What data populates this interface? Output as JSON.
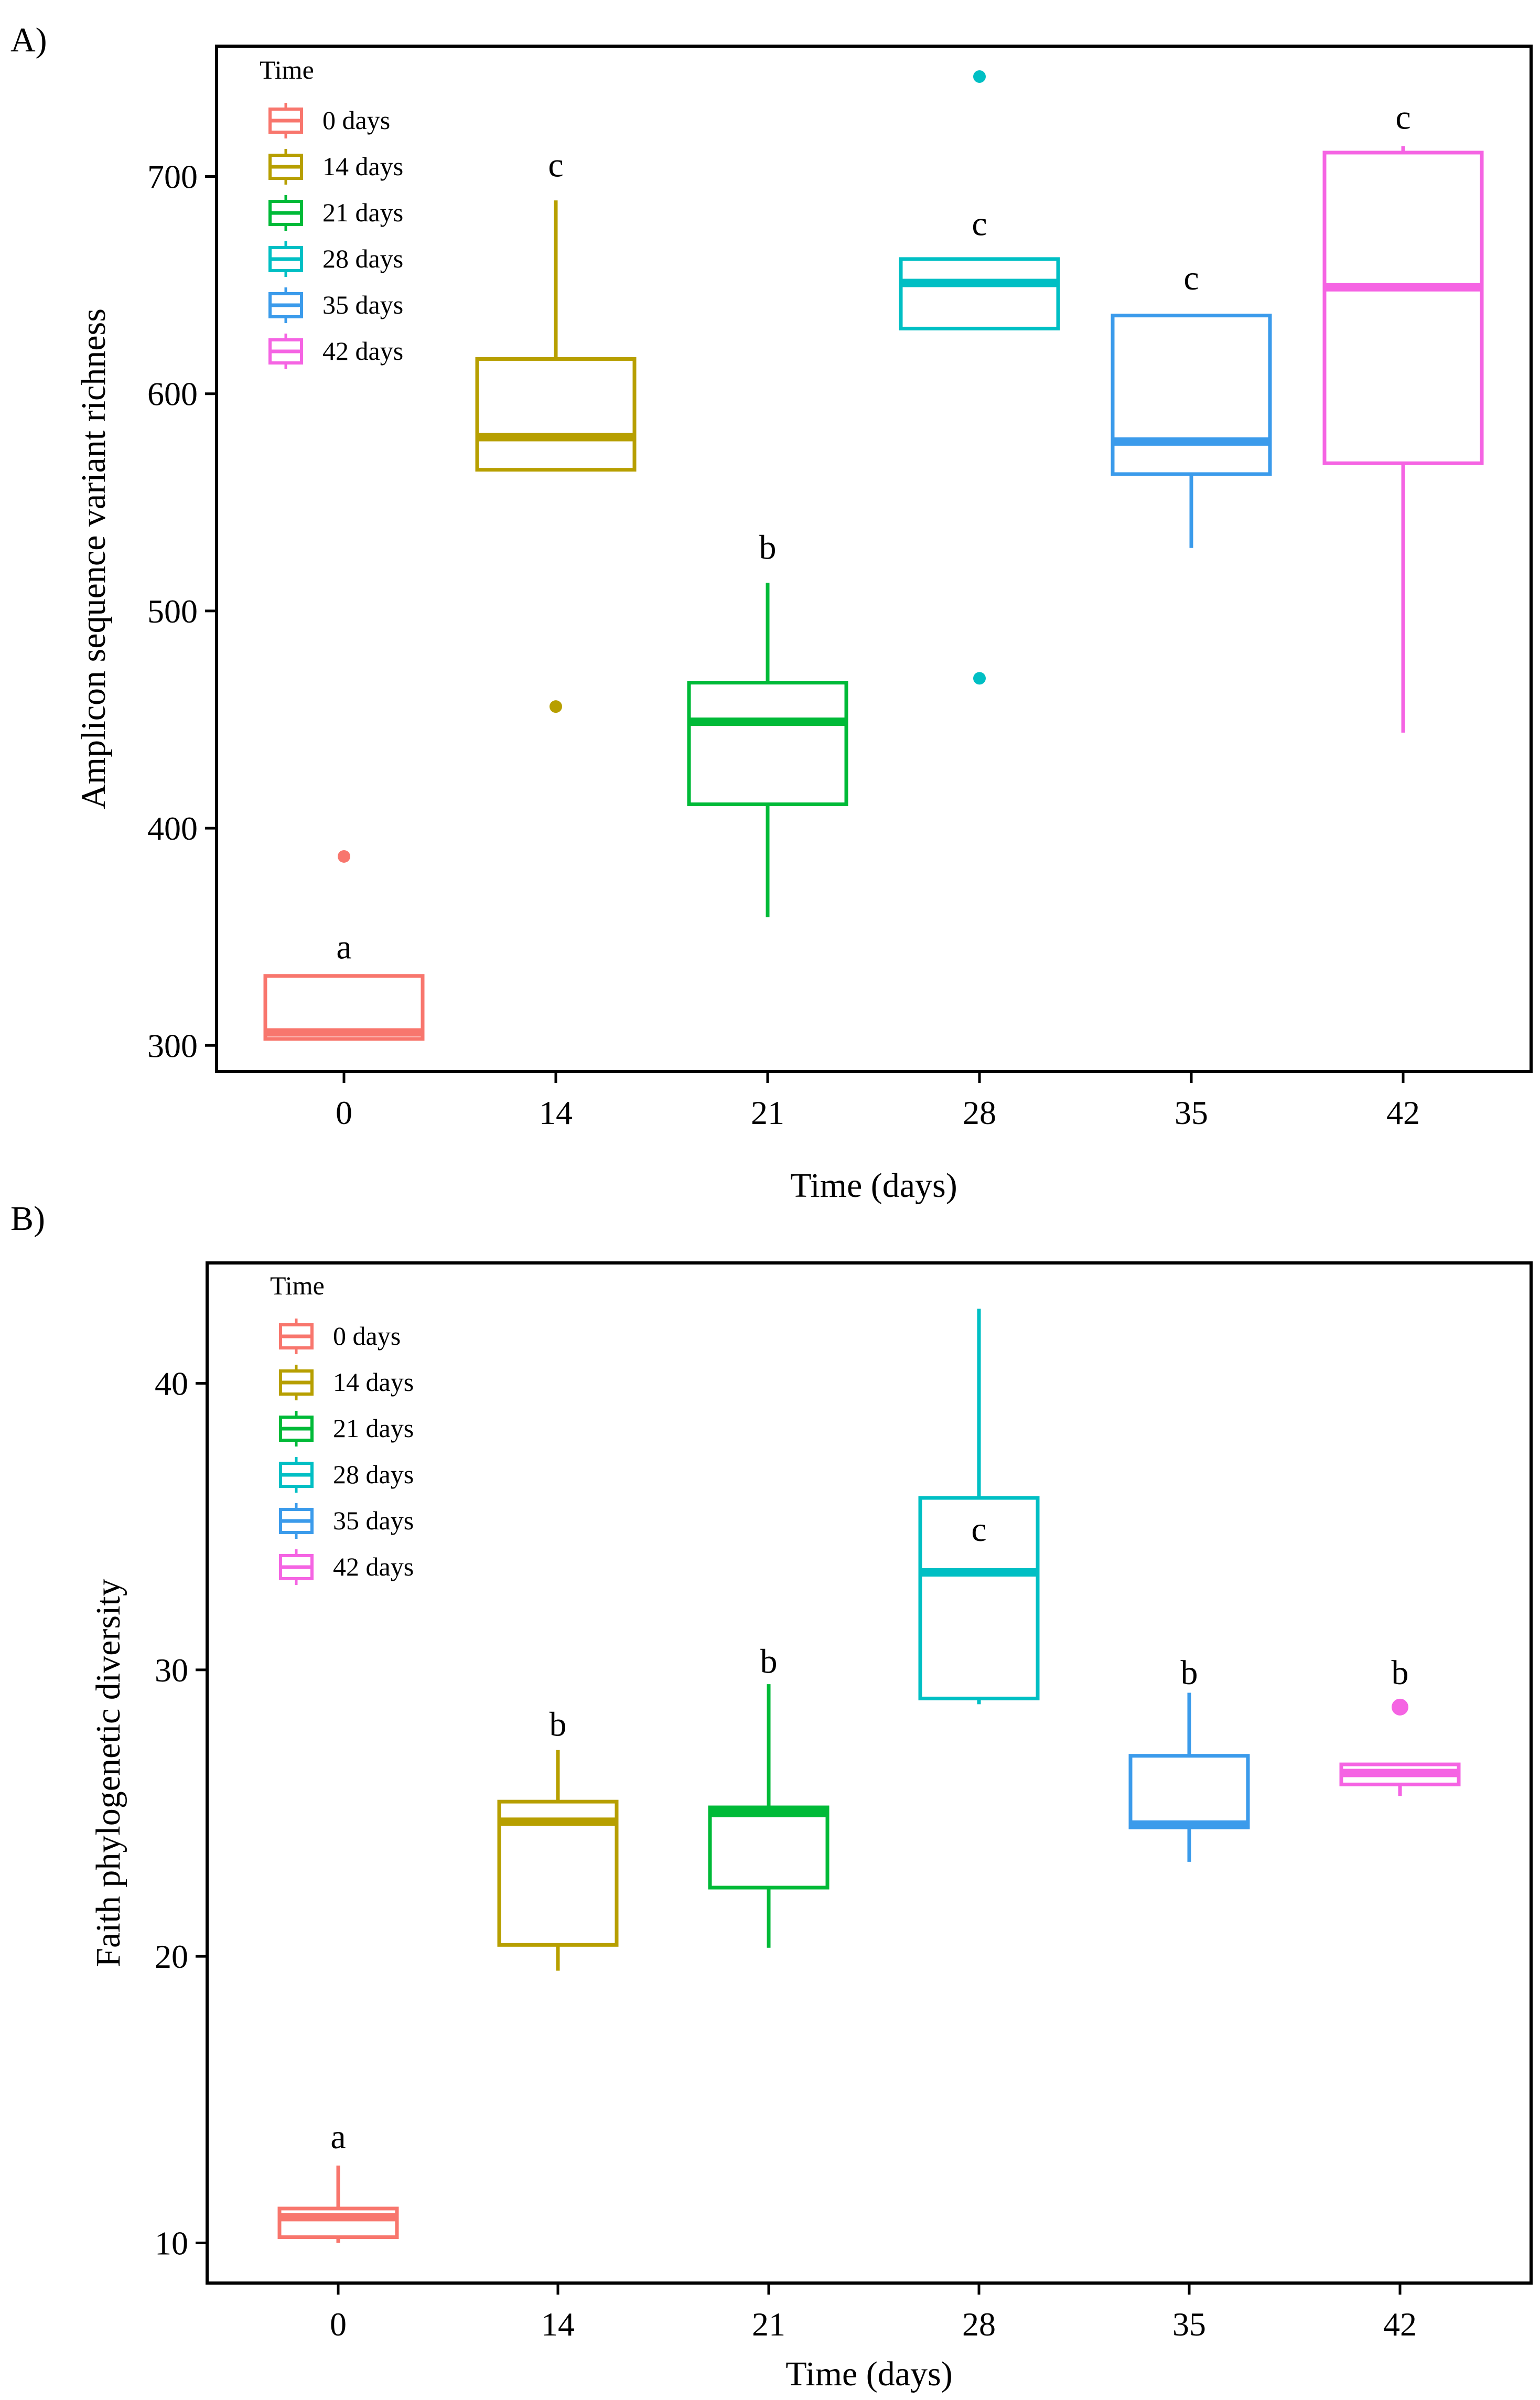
{
  "chart_data": [
    {
      "panel_label": "A)",
      "type": "boxplot",
      "title": "",
      "xlabel": "Time (days)",
      "ylabel": "Amplicon sequence variant richness",
      "ylim": [
        288,
        760
      ],
      "yticks": [
        300,
        400,
        500,
        600,
        700
      ],
      "grid": false,
      "legend": {
        "title": "Time",
        "position": "top-left",
        "entries": [
          "0 days",
          "14 days",
          "21 days",
          "28 days",
          "35 days",
          "42 days"
        ]
      },
      "groups": [
        {
          "category": "0",
          "legend_label": "0 days",
          "color": "#F8766D",
          "min": 303,
          "q1": 303,
          "median": 306,
          "q3": 332,
          "max": 332,
          "outliers": [
            387
          ],
          "letter": "a",
          "letter_y": 340
        },
        {
          "category": "14",
          "legend_label": "14 days",
          "color": "#B79F00",
          "min": 565,
          "q1": 565,
          "median": 580,
          "q3": 616,
          "max": 689,
          "outliers": [
            456
          ],
          "letter": "c",
          "letter_y": 700
        },
        {
          "category": "21",
          "legend_label": "21 days",
          "color": "#00BA38",
          "min": 359,
          "q1": 411,
          "median": 449,
          "q3": 467,
          "max": 513,
          "outliers": [],
          "letter": "b",
          "letter_y": 524
        },
        {
          "category": "28",
          "legend_label": "28 days",
          "color": "#00BFC4",
          "min": 630,
          "q1": 630,
          "median": 651,
          "q3": 662,
          "max": 662,
          "outliers": [
            746,
            469
          ],
          "letter": "c",
          "letter_y": 673
        },
        {
          "category": "35",
          "legend_label": "35 days",
          "color": "#3B9BEB",
          "min": 529,
          "q1": 563,
          "median": 578,
          "q3": 636,
          "max": 636,
          "outliers": [],
          "letter": "c",
          "letter_y": 648
        },
        {
          "category": "42",
          "legend_label": "42 days",
          "color": "#F564E3",
          "min": 444,
          "q1": 568,
          "median": 649,
          "q3": 711,
          "max": 714,
          "outliers": [],
          "letter": "c",
          "letter_y": 722
        }
      ]
    },
    {
      "panel_label": "B)",
      "type": "boxplot",
      "title": "",
      "xlabel": "Time (days)",
      "ylabel": "Faith phylogenetic diversity",
      "ylim": [
        8.6,
        44.2
      ],
      "yticks": [
        10,
        20,
        30,
        40
      ],
      "grid": false,
      "legend": {
        "title": "Time",
        "position": "top-left",
        "entries": [
          "0 days",
          "14 days",
          "21 days",
          "28 days",
          "35 days",
          "42 days"
        ]
      },
      "groups": [
        {
          "category": "0",
          "legend_label": "0 days",
          "color": "#F8766D",
          "min": 10.0,
          "q1": 10.2,
          "median": 10.9,
          "q3": 11.2,
          "max": 12.7,
          "outliers": [],
          "letter": "a",
          "letter_y": 13.3
        },
        {
          "category": "14",
          "legend_label": "14 days",
          "color": "#B79F00",
          "min": 19.5,
          "q1": 20.4,
          "median": 24.7,
          "q3": 25.4,
          "max": 27.2,
          "outliers": [],
          "letter": "b",
          "letter_y": 27.7
        },
        {
          "category": "21",
          "legend_label": "21 days",
          "color": "#00BA38",
          "min": 20.3,
          "q1": 22.4,
          "median": 25.0,
          "q3": 25.2,
          "max": 29.5,
          "outliers": [],
          "letter": "b",
          "letter_y": 29.9
        },
        {
          "category": "28",
          "legend_label": "28 days",
          "color": "#00BFC4",
          "min": 28.8,
          "q1": 29.0,
          "median": 33.4,
          "q3": 36.0,
          "max": 42.6,
          "outliers": [],
          "letter": "c",
          "letter_y": 34.5
        },
        {
          "category": "35",
          "legend_label": "35 days",
          "color": "#3B9BEB",
          "min": 23.3,
          "q1": 24.5,
          "median": 24.6,
          "q3": 27.0,
          "max": 29.2,
          "outliers": [],
          "letter": "b",
          "letter_y": 29.5
        },
        {
          "category": "42",
          "legend_label": "42 days",
          "color": "#F564E3",
          "min": 25.6,
          "q1": 26.0,
          "median": 26.4,
          "q3": 26.7,
          "max": 26.7,
          "outliers": [
            28.7
          ],
          "letter": "b",
          "letter_y": 29.5
        }
      ]
    }
  ]
}
